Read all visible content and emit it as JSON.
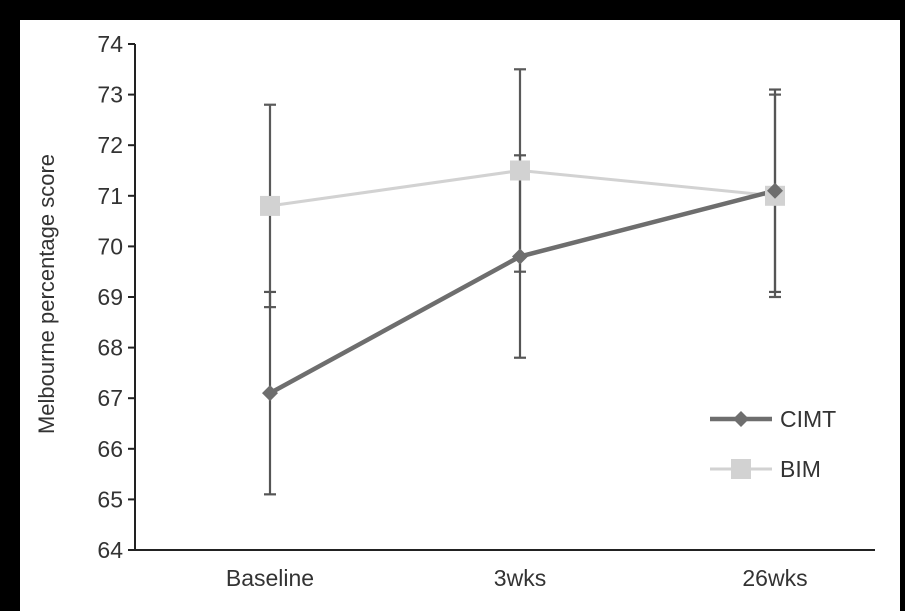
{
  "chart_data": {
    "type": "line",
    "categories": [
      "Baseline",
      "3wks",
      "26wks"
    ],
    "ylabel": "Melbourne percentage score",
    "xlabel": "",
    "ylim": [
      64,
      74
    ],
    "yticks": [
      64,
      65,
      66,
      67,
      68,
      69,
      70,
      71,
      72,
      73,
      74
    ],
    "grid": false,
    "legend_position": "bottom-right",
    "series": [
      {
        "name": "CIMT",
        "values": [
          67.1,
          69.8,
          71.1
        ],
        "error_lower": [
          65.1,
          67.8,
          69.1
        ],
        "error_upper": [
          69.1,
          71.8,
          73.1
        ],
        "color": "#6e6e6e",
        "marker": "diamond"
      },
      {
        "name": "BIM",
        "values": [
          70.8,
          71.5,
          71.0
        ],
        "error_lower": [
          68.8,
          69.5,
          69.0
        ],
        "error_upper": [
          72.8,
          73.5,
          73.0
        ],
        "color": "#d2d2d2",
        "marker": "square"
      }
    ]
  }
}
